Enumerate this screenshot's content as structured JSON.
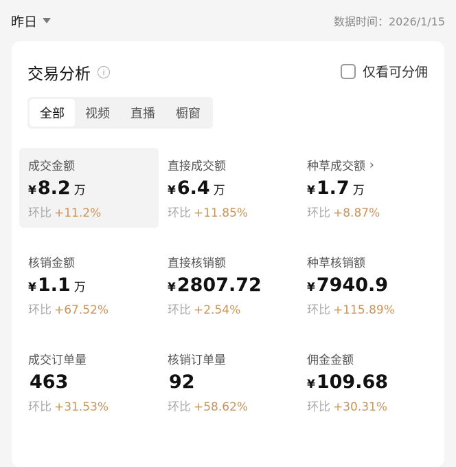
{
  "header": {
    "period": "昨日",
    "data_time": "数据时间：2026/1/15"
  },
  "card": {
    "title": "交易分析",
    "checkbox_label": "仅看可分佣",
    "checkbox_checked": false,
    "tabs": [
      {
        "label": "全部",
        "active": true
      },
      {
        "label": "视频"
      },
      {
        "label": "直播"
      },
      {
        "label": "橱窗"
      }
    ]
  },
  "compare_label": "环比",
  "metrics": [
    {
      "label": "成交金额",
      "currency": "¥",
      "value": "8.2",
      "unit": "万",
      "change": "+11.2%"
    },
    {
      "label": "直接成交额",
      "currency": "¥",
      "value": "6.4",
      "unit": "万",
      "change": "+11.85%"
    },
    {
      "label": "种草成交额",
      "currency": "¥",
      "value": "1.7",
      "unit": "万",
      "change": "+8.87%",
      "arrow": "›"
    },
    {
      "label": "核销金额",
      "currency": "¥",
      "value": "1.1",
      "unit": "万",
      "change": "+67.52%"
    },
    {
      "label": "直接核销额",
      "currency": "¥",
      "value": "2807.72",
      "unit": "",
      "change": "+2.54%"
    },
    {
      "label": "种草核销额",
      "currency": "¥",
      "value": "7940.9",
      "unit": "",
      "change": "+115.89%"
    },
    {
      "label": "成交订单量",
      "currency": "",
      "value": "463",
      "unit": "",
      "change": "+31.53%"
    },
    {
      "label": "核销订单量",
      "currency": "",
      "value": "92",
      "unit": "",
      "change": "+58.62%"
    },
    {
      "label": "佣金金额",
      "currency": "¥",
      "value": "109.68",
      "unit": "",
      "change": "+30.31%"
    }
  ]
}
